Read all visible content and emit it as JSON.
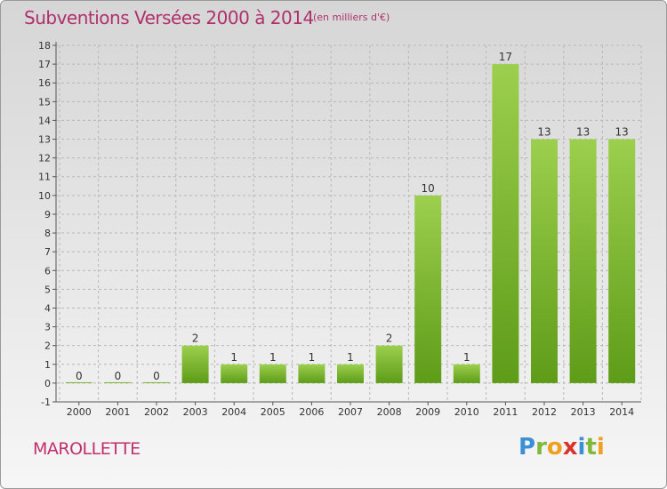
{
  "header": {
    "title": "Subventions Versées 2000 à 2014",
    "subtitle": "(en milliers d'€)"
  },
  "footer": {
    "commune": "MAROLLETTE",
    "brand_letters": [
      {
        "char": "P",
        "color": "#3a8fd6"
      },
      {
        "char": "r",
        "color": "#7fb83a"
      },
      {
        "char": "o",
        "color": "#f0a020"
      },
      {
        "char": "x",
        "color": "#d8342c"
      },
      {
        "char": "i",
        "color": "#3a8fd6"
      },
      {
        "char": "t",
        "color": "#7fb83a"
      },
      {
        "char": "i",
        "color": "#f0a020"
      }
    ]
  },
  "colors": {
    "title": "#b0306e",
    "bar_light": "#9ccf4e",
    "bar_dark": "#5e9c18",
    "grid": "#b8b8b8",
    "axis": "#555555"
  },
  "chart_data": {
    "type": "bar",
    "title": "Subventions Versées 2000 à 2014",
    "subtitle": "(en milliers d'€)",
    "xlabel": "",
    "ylabel": "",
    "categories": [
      "2000",
      "2001",
      "2002",
      "2003",
      "2004",
      "2005",
      "2006",
      "2007",
      "2008",
      "2009",
      "2010",
      "2011",
      "2012",
      "2013",
      "2014"
    ],
    "values": [
      0,
      0,
      0,
      2,
      1,
      1,
      1,
      1,
      2,
      10,
      1,
      17,
      13,
      13,
      13
    ],
    "value_labels": [
      "0",
      "0",
      "0",
      "2",
      "1",
      "1",
      "1",
      "1",
      "2",
      "10",
      "1",
      "17",
      "13",
      "13",
      "13"
    ],
    "ylim": [
      -1,
      18
    ],
    "yticks": [
      -1,
      0,
      1,
      2,
      3,
      4,
      5,
      6,
      7,
      8,
      9,
      10,
      11,
      12,
      13,
      14,
      15,
      16,
      17,
      18
    ],
    "grid": true,
    "legend": "none"
  }
}
